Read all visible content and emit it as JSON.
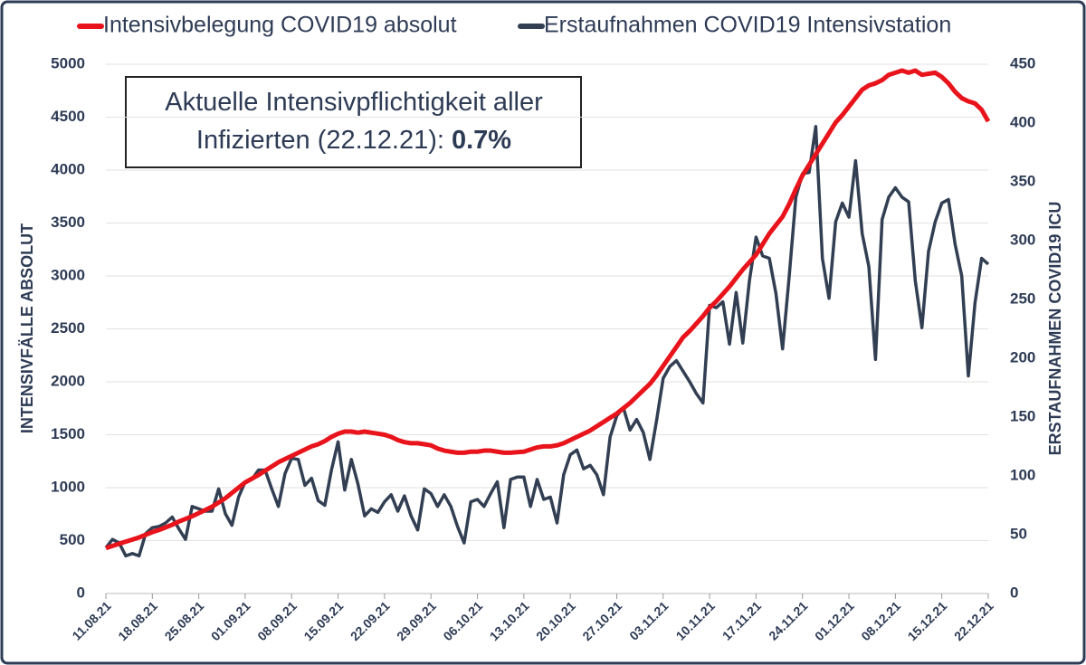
{
  "chart_data": {
    "type": "line",
    "annotation": [
      "Aktuelle Intensivpflichtigkeit aller",
      "Infizierten (22.12.21):",
      "0.7%"
    ],
    "ylabel": "INTENSIVFÄLLE ABSOLUT",
    "y2label": "ERSTAUFNAHMEN COVID19 ICU",
    "ylim": [
      0,
      5000
    ],
    "yticks": [
      0,
      500,
      1000,
      1500,
      2000,
      2500,
      3000,
      3500,
      4000,
      4500,
      5000
    ],
    "y2lim": [
      0,
      450
    ],
    "y2ticks": [
      0,
      50,
      100,
      150,
      200,
      250,
      300,
      350,
      400,
      450
    ],
    "grid": true,
    "legend": "top",
    "categories": [
      "11.08.21",
      null,
      null,
      null,
      null,
      null,
      null,
      "18.08.21",
      null,
      null,
      null,
      null,
      null,
      null,
      "25.08.21",
      null,
      null,
      null,
      null,
      null,
      null,
      "01.09.21",
      null,
      null,
      null,
      null,
      null,
      null,
      "08.09.21",
      null,
      null,
      null,
      null,
      null,
      null,
      "15.09.21",
      null,
      null,
      null,
      null,
      null,
      null,
      "22.09.21",
      null,
      null,
      null,
      null,
      null,
      null,
      "29.09.21",
      null,
      null,
      null,
      null,
      null,
      null,
      "06.10.21",
      null,
      null,
      null,
      null,
      null,
      null,
      "13.10.21",
      null,
      null,
      null,
      null,
      null,
      null,
      "20.10.21",
      null,
      null,
      null,
      null,
      null,
      null,
      "27.10.21",
      null,
      null,
      null,
      null,
      null,
      null,
      "03.11.21",
      null,
      null,
      null,
      null,
      null,
      null,
      "10.11.21",
      null,
      null,
      null,
      null,
      null,
      null,
      "17.11.21",
      null,
      null,
      null,
      null,
      null,
      null,
      "24.11.21",
      null,
      null,
      null,
      null,
      null,
      null,
      "01.12.21",
      null,
      null,
      null,
      null,
      null,
      null,
      "08.12.21",
      null,
      null,
      null,
      null,
      null,
      null,
      "15.12.21",
      null,
      null,
      null,
      null,
      null,
      null,
      "22.12.21"
    ],
    "series": [
      {
        "name": "Intensivbelegung COVID19 absolut",
        "color": "#e8131b",
        "values": [
          430,
          450,
          470,
          490,
          510,
          530,
          555,
          580,
          600,
          625,
          650,
          680,
          705,
          730,
          760,
          790,
          820,
          860,
          900,
          950,
          1000,
          1050,
          1085,
          1120,
          1160,
          1200,
          1240,
          1270,
          1300,
          1330,
          1360,
          1390,
          1410,
          1440,
          1480,
          1510,
          1530,
          1530,
          1520,
          1530,
          1520,
          1510,
          1500,
          1480,
          1450,
          1430,
          1420,
          1420,
          1410,
          1400,
          1370,
          1350,
          1340,
          1330,
          1330,
          1340,
          1340,
          1350,
          1350,
          1340,
          1330,
          1330,
          1335,
          1340,
          1360,
          1380,
          1390,
          1390,
          1400,
          1420,
          1450,
          1480,
          1510,
          1540,
          1580,
          1620,
          1660,
          1700,
          1750,
          1800,
          1860,
          1920,
          1980,
          2060,
          2150,
          2240,
          2330,
          2420,
          2480,
          2550,
          2620,
          2700,
          2760,
          2830,
          2900,
          2980,
          3060,
          3130,
          3200,
          3300,
          3400,
          3480,
          3560,
          3680,
          3820,
          3950,
          4050,
          4150,
          4250,
          4350,
          4450,
          4520,
          4600,
          4680,
          4760,
          4800,
          4820,
          4850,
          4900,
          4920,
          4940,
          4920,
          4940,
          4900,
          4910,
          4920,
          4880,
          4820,
          4740,
          4680,
          4650,
          4630,
          4570,
          4460
        ]
      },
      {
        "name": "Erstaufnahmen COVID19 Intensivstation",
        "color": "#323e52",
        "axis": "y2",
        "values": [
          39,
          46,
          43,
          32,
          34,
          32,
          51,
          56,
          57,
          60,
          65,
          55,
          46,
          74,
          72,
          70,
          70,
          89,
          68,
          58,
          82,
          95,
          97,
          105,
          105,
          89,
          74,
          102,
          115,
          114,
          92,
          98,
          79,
          75,
          105,
          129,
          88,
          114,
          93,
          66,
          72,
          69,
          78,
          84,
          70,
          83,
          66,
          54,
          89,
          85,
          74,
          84,
          74,
          57,
          43,
          78,
          80,
          74,
          85,
          95,
          56,
          97,
          99,
          99,
          74,
          97,
          80,
          82,
          60,
          101,
          118,
          122,
          106,
          109,
          101,
          84,
          133,
          151,
          158,
          139,
          148,
          137,
          114,
          147,
          183,
          193,
          198,
          189,
          180,
          170,
          162,
          245,
          243,
          248,
          212,
          256,
          213,
          266,
          303,
          287,
          285,
          255,
          208,
          270,
          337,
          357,
          358,
          397,
          285,
          251,
          316,
          332,
          320,
          368,
          306,
          278,
          199,
          318,
          337,
          345,
          337,
          333,
          266,
          226,
          291,
          316,
          332,
          335,
          297,
          270,
          185,
          247,
          285,
          280
        ]
      }
    ]
  }
}
